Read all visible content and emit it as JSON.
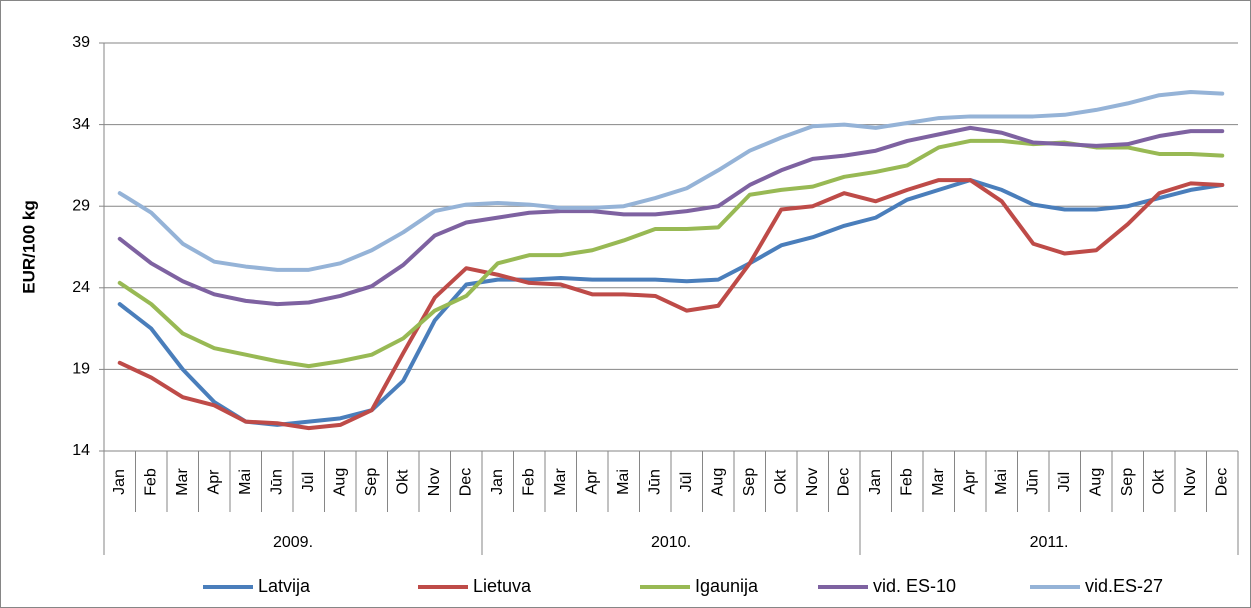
{
  "chart_data": {
    "type": "line",
    "y_label": "EUR/100 kg",
    "categories": [
      "Jan",
      "Feb",
      "Mar",
      "Apr",
      "Mai",
      "Jūn",
      "Jūl",
      "Aug",
      "Sep",
      "Okt",
      "Nov",
      "Dec",
      "Jan",
      "Feb",
      "Mar",
      "Apr",
      "Mai",
      "Jūn",
      "Jūl",
      "Aug",
      "Sep",
      "Okt",
      "Nov",
      "Dec",
      "Jan",
      "Feb",
      "Mar",
      "Apr",
      "Mai",
      "Jūn",
      "Jūl",
      "Aug",
      "Sep",
      "Okt",
      "Nov",
      "Dec"
    ],
    "years": [
      "2009.",
      "2010.",
      "2011."
    ],
    "ylim": [
      14,
      39
    ],
    "yticks": [
      14,
      19,
      24,
      29,
      34,
      39
    ],
    "grid": true,
    "legend": "bottom",
    "series": [
      {
        "name": "Latvija",
        "color": "#4a7ebb",
        "values": [
          23.0,
          21.5,
          19.0,
          17.0,
          15.8,
          15.6,
          15.8,
          16.0,
          16.5,
          18.3,
          22.0,
          24.2,
          24.5,
          24.5,
          24.6,
          24.5,
          24.5,
          24.5,
          24.4,
          24.5,
          25.5,
          26.6,
          27.1,
          27.8,
          28.3,
          29.4,
          30.0,
          30.6,
          30.0,
          29.1,
          28.8,
          28.8,
          29.0,
          29.5,
          30.0,
          30.3
        ]
      },
      {
        "name": "Lietuva",
        "color": "#be4b48",
        "values": [
          19.4,
          18.5,
          17.3,
          16.8,
          15.8,
          15.7,
          15.4,
          15.6,
          16.5,
          20.0,
          23.4,
          25.2,
          24.8,
          24.3,
          24.2,
          23.6,
          23.6,
          23.5,
          22.6,
          22.9,
          25.5,
          28.8,
          29.0,
          29.8,
          29.3,
          30.0,
          30.6,
          30.6,
          29.3,
          26.7,
          26.1,
          26.3,
          27.9,
          29.8,
          30.4,
          30.3
        ]
      },
      {
        "name": "Igaunija",
        "color": "#98b954",
        "values": [
          24.3,
          23.0,
          21.2,
          20.3,
          19.9,
          19.5,
          19.2,
          19.5,
          19.9,
          20.9,
          22.6,
          23.5,
          25.5,
          26.0,
          26.0,
          26.3,
          26.9,
          27.6,
          27.6,
          27.7,
          29.7,
          30.0,
          30.2,
          30.8,
          31.1,
          31.5,
          32.6,
          33.0,
          33.0,
          32.8,
          32.9,
          32.6,
          32.6,
          32.2,
          32.2,
          32.1
        ]
      },
      {
        "name": "vid. ES-10",
        "color": "#7e62a1",
        "values": [
          27.0,
          25.5,
          24.4,
          23.6,
          23.2,
          23.0,
          23.1,
          23.5,
          24.1,
          25.4,
          27.2,
          28.0,
          28.3,
          28.6,
          28.7,
          28.7,
          28.5,
          28.5,
          28.7,
          29.0,
          30.3,
          31.2,
          31.9,
          32.1,
          32.4,
          33.0,
          33.4,
          33.8,
          33.5,
          32.9,
          32.8,
          32.7,
          32.8,
          33.3,
          33.6,
          33.6
        ]
      },
      {
        "name": "vid.ES-27",
        "color": "#95b3d7",
        "values": [
          29.8,
          28.6,
          26.7,
          25.6,
          25.3,
          25.1,
          25.1,
          25.5,
          26.3,
          27.4,
          28.7,
          29.1,
          29.2,
          29.1,
          28.9,
          28.9,
          29.0,
          29.5,
          30.1,
          31.2,
          32.4,
          33.2,
          33.9,
          34.0,
          33.8,
          34.1,
          34.4,
          34.5,
          34.5,
          34.5,
          34.6,
          34.9,
          35.3,
          35.8,
          36.0,
          35.9
        ]
      }
    ]
  }
}
